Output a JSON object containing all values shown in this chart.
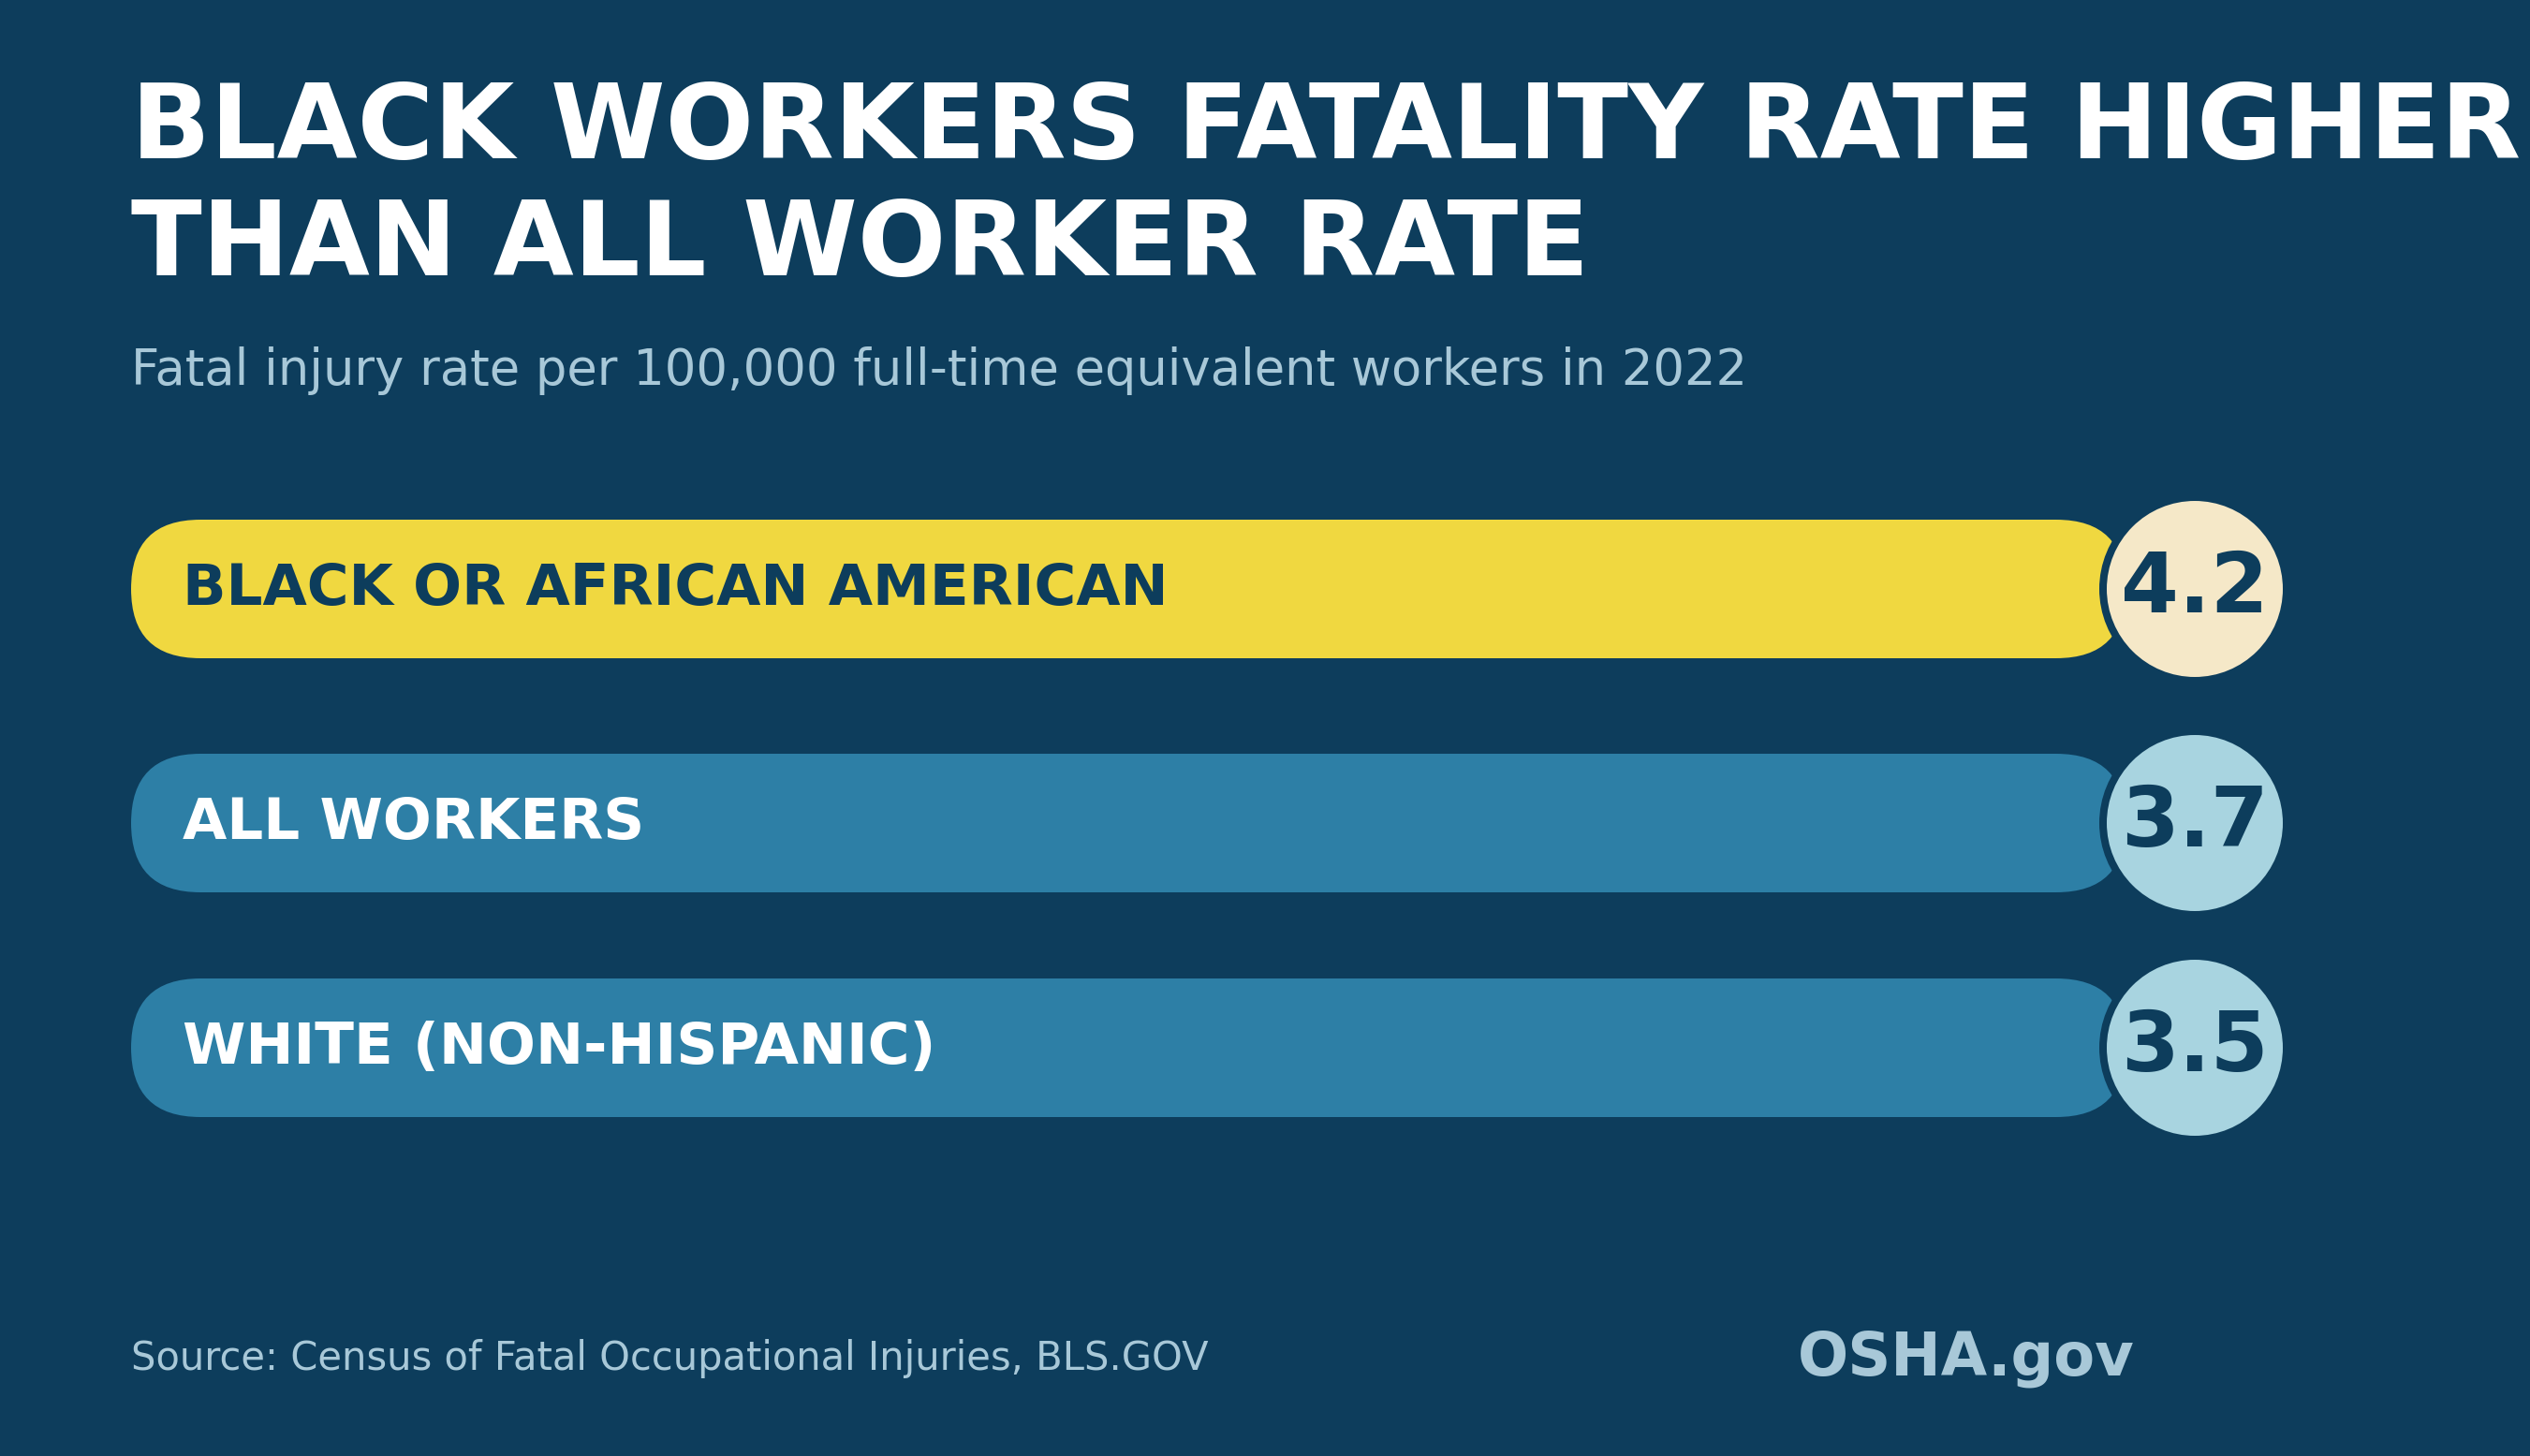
{
  "title_line1": "BLACK WORKERS FATALITY RATE HIGHER",
  "title_line2": "THAN ALL WORKER RATE",
  "subtitle": "Fatal injury rate per 100,000 full-time equivalent workers in 2022",
  "background_color": "#0d3d5c",
  "title_color": "#ffffff",
  "subtitle_color": "#a8c8d8",
  "source_text": "Source: Census of Fatal Occupational Injuries, BLS.GOV",
  "source_color": "#a8c8d8",
  "osha_text": "OSHA.gov",
  "osha_color": "#a8c8d8",
  "bars": [
    {
      "label": "BLACK OR AFRICAN AMERICAN",
      "value": 4.2,
      "value_str": "4.2",
      "bar_color": "#f0d840",
      "label_color": "#0d3d5c",
      "circle_color": "#f5e8c8",
      "circle_text_color": "#0d3d5c"
    },
    {
      "label": "ALL WORKERS",
      "value": 3.7,
      "value_str": "3.7",
      "bar_color": "#2d7fa6",
      "label_color": "#ffffff",
      "circle_color": "#a8d4e0",
      "circle_text_color": "#0d3d5c"
    },
    {
      "label": "WHITE (NON-HISPANIC)",
      "value": 3.5,
      "value_str": "3.5",
      "bar_color": "#2d7fa6",
      "label_color": "#ffffff",
      "circle_color": "#a8d4e0",
      "circle_text_color": "#0d3d5c"
    }
  ]
}
